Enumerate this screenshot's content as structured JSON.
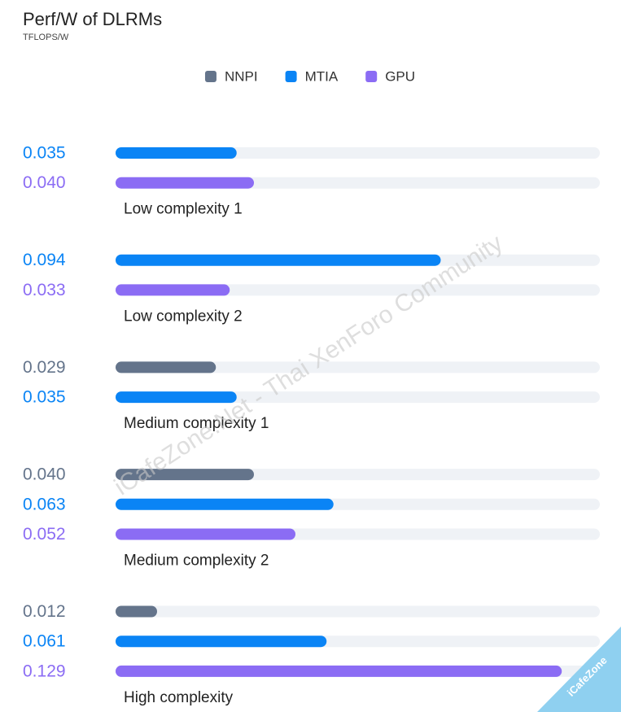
{
  "chart_data": {
    "type": "bar",
    "orientation": "horizontal",
    "title": "Perf/W of DLRMs",
    "subtitle": "TFLOPS/W",
    "categories": [
      "Low complexity 1",
      "Low complexity 2",
      "Medium complexity 1",
      "Medium complexity 2",
      "High complexity"
    ],
    "series": [
      {
        "name": "NNPI",
        "color": "#64748b",
        "values": [
          null,
          null,
          0.029,
          0.04,
          0.012
        ],
        "value_labels": [
          null,
          null,
          "0.029",
          "0.040",
          "0.012"
        ]
      },
      {
        "name": "MTIA",
        "color": "#0a84f5",
        "values": [
          0.035,
          0.094,
          0.035,
          0.063,
          0.061
        ],
        "value_labels": [
          "0.035",
          "0.094",
          "0.035",
          "0.063",
          "0.061"
        ]
      },
      {
        "name": "GPU",
        "color": "#8b6cf4",
        "values": [
          0.04,
          0.033,
          null,
          0.052,
          0.129
        ],
        "value_labels": [
          "0.040",
          "0.033",
          null,
          "0.052",
          "0.129"
        ]
      }
    ],
    "xlim": [
      0,
      0.14
    ],
    "legend": "top",
    "watermark": "iCafeZone.Net - Thai XenForo Community",
    "badge": "iCafeZone"
  }
}
